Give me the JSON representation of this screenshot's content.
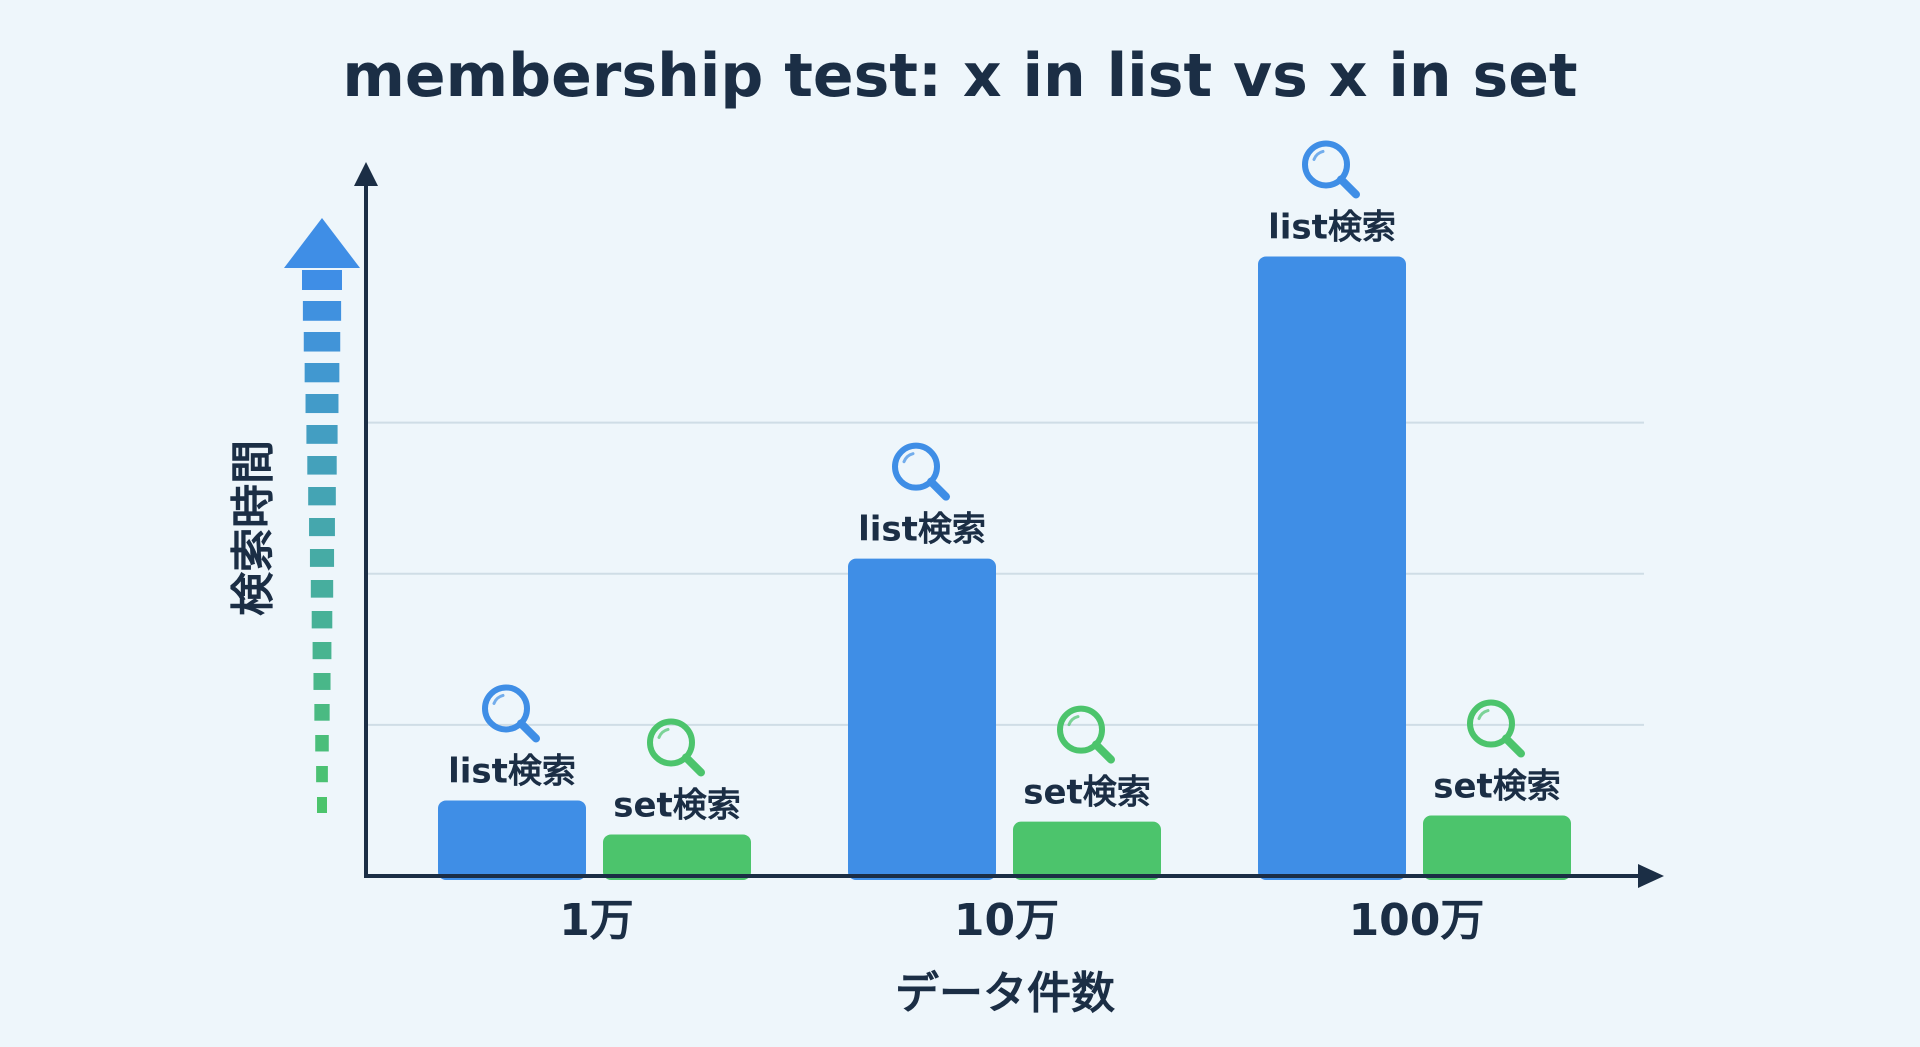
{
  "chart_data": {
    "type": "bar",
    "title": "membership test: x in list vs x in set",
    "xlabel": "データ件数",
    "ylabel": "検索時間",
    "categories": [
      "1万",
      "10万",
      "100万"
    ],
    "series": [
      {
        "name": "list検索",
        "color": "#3f8ee6",
        "values": [
          1.0,
          4.2,
          8.2
        ],
        "icon": "search-icon"
      },
      {
        "name": "set検索",
        "color": "#4cc46c",
        "values": [
          0.55,
          0.72,
          0.8
        ],
        "icon": "search-icon"
      }
    ],
    "ylim": [
      0,
      9
    ],
    "grid": true,
    "legend": "none"
  }
}
